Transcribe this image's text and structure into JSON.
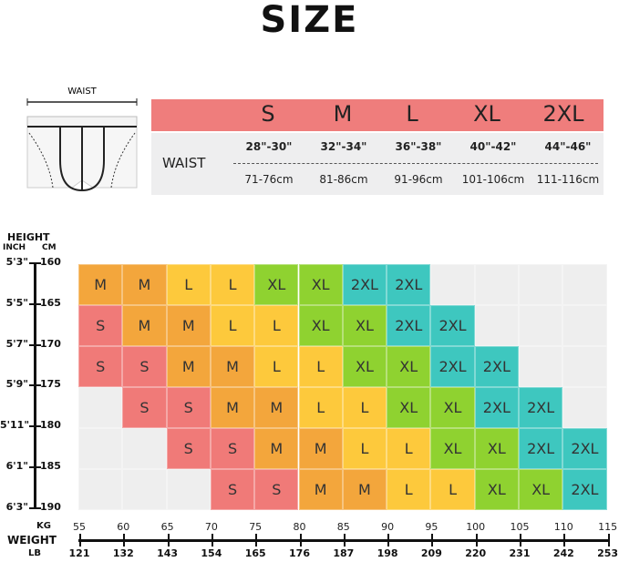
{
  "title": "SIZE",
  "waist_table": {
    "figure_label": "WAIST",
    "row_label": "WAIST",
    "sizes": [
      "S",
      "M",
      "L",
      "XL",
      "2XL"
    ],
    "inches": [
      "28\"-30\"",
      "32\"-34\"",
      "36\"-38\"",
      "40\"-42\"",
      "44\"-46\""
    ],
    "cm": [
      "71-76cm",
      "81-86cm",
      "91-96cm",
      "101-106cm",
      "111-116cm"
    ],
    "header_color": "#ef7d7c"
  },
  "height_axis": {
    "title": "HEIGHT",
    "unit_inch": "INCH",
    "unit_cm": "CM",
    "inch": [
      "5'3\"",
      "5'5\"",
      "5'7\"",
      "5'9\"",
      "5'11\"",
      "6'1\"",
      "6'3\""
    ],
    "cm": [
      "160",
      "165",
      "170",
      "175",
      "180",
      "185",
      "190"
    ]
  },
  "weight_axis": {
    "title": "WEIGHT",
    "unit_kg": "KG",
    "unit_lb": "LB",
    "kg": [
      "55",
      "60",
      "65",
      "70",
      "75",
      "80",
      "85",
      "90",
      "95",
      "100",
      "105",
      "110",
      "115"
    ],
    "lb": [
      "121",
      "132",
      "143",
      "154",
      "165",
      "176",
      "187",
      "198",
      "209",
      "220",
      "231",
      "242",
      "253"
    ]
  },
  "grid": [
    [
      "M",
      "M",
      "L",
      "L",
      "XL",
      "XL",
      "2XL",
      "2XL",
      "",
      "",
      "",
      ""
    ],
    [
      "S",
      "M",
      "M",
      "L",
      "L",
      "XL",
      "XL",
      "2XL",
      "2XL",
      "",
      "",
      ""
    ],
    [
      "S",
      "S",
      "M",
      "M",
      "L",
      "L",
      "XL",
      "XL",
      "2XL",
      "2XL",
      "",
      ""
    ],
    [
      "",
      "S",
      "S",
      "M",
      "M",
      "L",
      "L",
      "XL",
      "XL",
      "2XL",
      "2XL",
      ""
    ],
    [
      "",
      "",
      "S",
      "S",
      "M",
      "M",
      "L",
      "L",
      "XL",
      "XL",
      "2XL",
      "2XL"
    ],
    [
      "",
      "",
      "",
      "S",
      "S",
      "M",
      "M",
      "L",
      "L",
      "XL",
      "XL",
      "2XL"
    ]
  ],
  "colors": {
    "S": "#f07a78",
    "M": "#f3a63c",
    "L": "#fdc93c",
    "XL": "#8fd230",
    "2XL": "#3ec7bf",
    "empty": "#eeeeee"
  }
}
